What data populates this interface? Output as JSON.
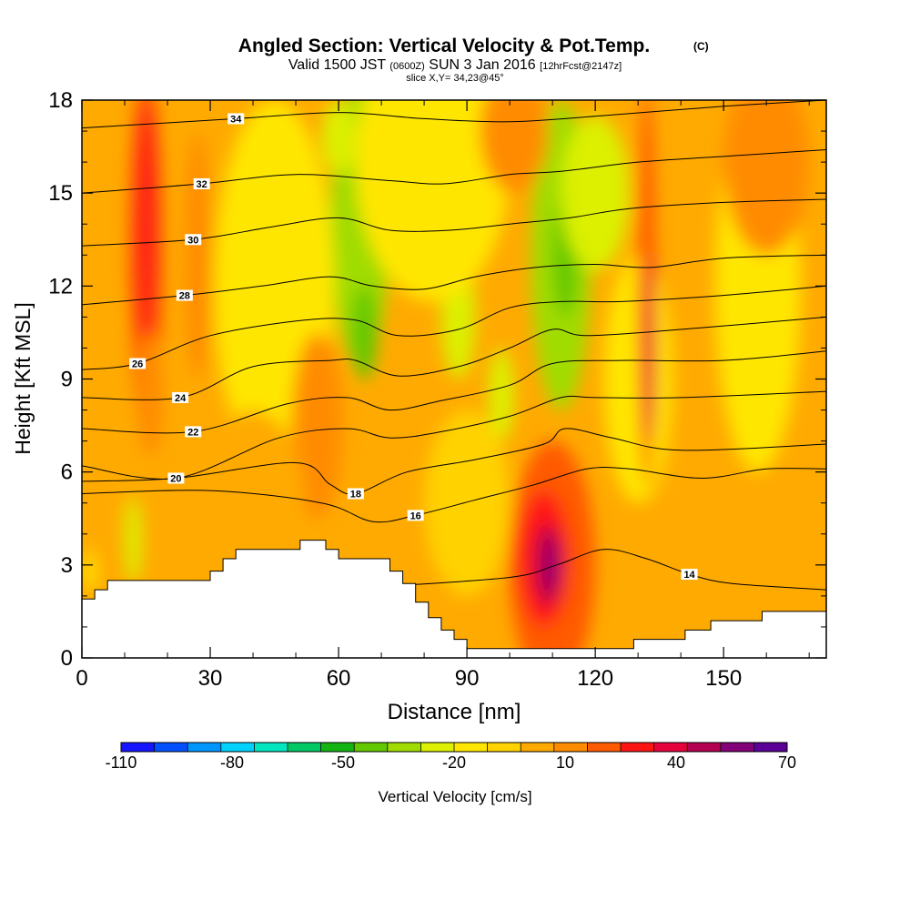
{
  "chart_data": {
    "type": "heatmap",
    "title": "Angled Section: Vertical Velocity & Pot.Temp.",
    "title_mark": "(C)",
    "subtitle": {
      "valid_prefix": "Valid 1500 JST",
      "utc": "(0600Z)",
      "date": "SUN 3 Jan 2016",
      "forecast": "[12hrFcst@2147z]"
    },
    "slice_label": "slice X,Y= 34,23@45°",
    "xlabel": "Distance [nm]",
    "ylabel": "Height [Kft MSL]",
    "xlim": [
      0,
      174
    ],
    "ylim": [
      0,
      18
    ],
    "x_ticks": [
      "0",
      "30",
      "60",
      "90",
      "120",
      "150"
    ],
    "y_ticks": [
      "0",
      "3",
      "6",
      "9",
      "12",
      "15",
      "18"
    ],
    "grid": false,
    "colorbar": {
      "label": "Vertical Velocity [cm/s]",
      "tick_labels": [
        "-110",
        "-80",
        "-50",
        "-20",
        "10",
        "40",
        "70"
      ],
      "levels": [
        -110,
        -100,
        -90,
        -80,
        -70,
        -60,
        -50,
        -40,
        -30,
        -20,
        -10,
        0,
        10,
        20,
        30,
        40,
        50,
        60,
        70
      ],
      "colors": [
        "#1414ff",
        "#0050ff",
        "#0096ff",
        "#00d2ff",
        "#00e6be",
        "#00c864",
        "#14b414",
        "#64c800",
        "#a0dc00",
        "#dcf000",
        "#ffe600",
        "#ffd200",
        "#ffaa00",
        "#ff8c00",
        "#ff5a00",
        "#ff1414",
        "#e6003c",
        "#b40050",
        "#820078",
        "#5a0096"
      ]
    },
    "velocity_features": [
      {
        "x": 65,
        "y": 14,
        "w": 7,
        "h": 4.5,
        "value": -35
      },
      {
        "x": 66,
        "y": 10.5,
        "w": 3,
        "h": 1.5,
        "value": -45
      },
      {
        "x": 60,
        "y": 16.8,
        "w": 4,
        "h": 1.2,
        "value": -30
      },
      {
        "x": 112,
        "y": 13,
        "w": 7,
        "h": 5,
        "value": -35
      },
      {
        "x": 113,
        "y": 13,
        "w": 3,
        "h": 2,
        "value": -45
      },
      {
        "x": 98,
        "y": 8.5,
        "w": 3,
        "h": 1.5,
        "value": -25
      },
      {
        "x": 88,
        "y": 11,
        "w": 4,
        "h": 2,
        "value": -22
      },
      {
        "x": 120,
        "y": 15,
        "w": 8,
        "h": 2.5,
        "value": -25
      },
      {
        "x": 12,
        "y": 3.8,
        "w": 2,
        "h": 1.4,
        "value": -22
      },
      {
        "x": 2,
        "y": 2.8,
        "w": 1.5,
        "h": 0.7,
        "value": -15
      },
      {
        "x": 82,
        "y": 16,
        "w": 18,
        "h": 4.5,
        "value": -12
      },
      {
        "x": 130,
        "y": 9,
        "w": 8,
        "h": 4,
        "value": -13
      },
      {
        "x": 45,
        "y": 12,
        "w": 14,
        "h": 6,
        "value": -12
      },
      {
        "x": 158,
        "y": 12,
        "w": 10,
        "h": 6,
        "value": -13
      },
      {
        "x": 90,
        "y": 5,
        "w": 10,
        "h": 3,
        "value": -6
      },
      {
        "x": 15,
        "y": 13,
        "w": 4,
        "h": 6,
        "value": 25
      },
      {
        "x": 15,
        "y": 14,
        "w": 2.5,
        "h": 4,
        "value": 35
      },
      {
        "x": 16,
        "y": 8.5,
        "w": 3,
        "h": 2,
        "value": 12
      },
      {
        "x": 27,
        "y": 13,
        "w": 3,
        "h": 4,
        "value": 15
      },
      {
        "x": 132,
        "y": 12,
        "w": 2,
        "h": 6.5,
        "value": 28
      },
      {
        "x": 133,
        "y": 10,
        "w": 1.2,
        "h": 3,
        "value": 40
      },
      {
        "x": 110,
        "y": 3,
        "w": 10,
        "h": 4,
        "value": 25
      },
      {
        "x": 108,
        "y": 3.2,
        "w": 6,
        "h": 2.2,
        "value": 38
      },
      {
        "x": 109,
        "y": 3,
        "w": 3,
        "h": 1.3,
        "value": 50
      },
      {
        "x": 110,
        "y": 3,
        "w": 1.2,
        "h": 0.8,
        "value": 65
      },
      {
        "x": 55,
        "y": 7.5,
        "w": 6,
        "h": 3,
        "value": 15
      },
      {
        "x": 101,
        "y": 17,
        "w": 8,
        "h": 2,
        "value": 15
      },
      {
        "x": 145,
        "y": 4,
        "w": 12,
        "h": 3,
        "value": 3
      },
      {
        "x": 40,
        "y": 5,
        "w": 12,
        "h": 3,
        "value": 5
      },
      {
        "x": 5,
        "y": 8,
        "w": 6,
        "h": 4,
        "value": 8
      },
      {
        "x": 160,
        "y": 16,
        "w": 10,
        "h": 3,
        "value": 12
      }
    ],
    "terrain": [
      [
        0,
        1.9
      ],
      [
        3,
        1.9
      ],
      [
        3,
        2.2
      ],
      [
        6,
        2.2
      ],
      [
        6,
        2.5
      ],
      [
        30,
        2.5
      ],
      [
        30,
        2.8
      ],
      [
        33,
        2.8
      ],
      [
        33,
        3.2
      ],
      [
        36,
        3.2
      ],
      [
        36,
        3.5
      ],
      [
        51,
        3.5
      ],
      [
        51,
        3.8
      ],
      [
        57,
        3.8
      ],
      [
        57,
        3.5
      ],
      [
        60,
        3.5
      ],
      [
        60,
        3.2
      ],
      [
        72,
        3.2
      ],
      [
        72,
        2.8
      ],
      [
        75,
        2.8
      ],
      [
        75,
        2.4
      ],
      [
        78,
        2.4
      ],
      [
        78,
        1.8
      ],
      [
        81,
        1.8
      ],
      [
        81,
        1.3
      ],
      [
        84,
        1.3
      ],
      [
        84,
        0.9
      ],
      [
        87,
        0.9
      ],
      [
        87,
        0.6
      ],
      [
        90,
        0.6
      ],
      [
        90,
        0.3
      ],
      [
        129,
        0.3
      ],
      [
        129,
        0.6
      ],
      [
        141,
        0.6
      ],
      [
        141,
        0.9
      ],
      [
        147,
        0.9
      ],
      [
        147,
        1.2
      ],
      [
        159,
        1.2
      ],
      [
        159,
        1.5
      ],
      [
        174,
        1.5
      ]
    ],
    "theta_contours": [
      {
        "value": 14,
        "label": "14",
        "label_at": [
          142,
          2.7
        ],
        "points": [
          [
            70,
            2.3
          ],
          [
            100,
            2.6
          ],
          [
            111,
            3.0
          ],
          [
            122,
            3.5
          ],
          [
            132,
            3.2
          ],
          [
            142,
            2.7
          ],
          [
            152,
            2.4
          ],
          [
            174,
            2.2
          ]
        ]
      },
      {
        "value": 16,
        "label": "16",
        "label_at": [
          78,
          4.6
        ],
        "points": [
          [
            0,
            5.3
          ],
          [
            30,
            5.4
          ],
          [
            56,
            5.0
          ],
          [
            68,
            4.4
          ],
          [
            78,
            4.6
          ],
          [
            92,
            5.1
          ],
          [
            106,
            5.6
          ],
          [
            118,
            6.1
          ],
          [
            128,
            6.1
          ],
          [
            145,
            5.8
          ],
          [
            160,
            6.1
          ],
          [
            174,
            6.1
          ]
        ]
      },
      {
        "value": 18,
        "label": "18",
        "label_at": [
          64,
          5.3
        ],
        "points": [
          [
            0,
            5.7
          ],
          [
            22,
            5.8
          ],
          [
            50,
            6.3
          ],
          [
            58,
            5.6
          ],
          [
            64,
            5.3
          ],
          [
            76,
            6.0
          ],
          [
            92,
            6.4
          ],
          [
            108,
            6.9
          ],
          [
            113,
            7.4
          ],
          [
            124,
            7.1
          ],
          [
            140,
            6.7
          ],
          [
            174,
            6.9
          ]
        ]
      },
      {
        "value": 20,
        "label": "20",
        "label_at": [
          22,
          5.8
        ],
        "points": [
          [
            0,
            6.2
          ],
          [
            22,
            5.8
          ],
          [
            46,
            7.1
          ],
          [
            62,
            7.4
          ],
          [
            72,
            7.1
          ],
          [
            84,
            7.3
          ],
          [
            100,
            7.8
          ],
          [
            112,
            8.4
          ],
          [
            120,
            8.4
          ],
          [
            140,
            8.4
          ],
          [
            174,
            8.6
          ]
        ]
      },
      {
        "value": 22,
        "label": "22",
        "label_at": [
          26,
          7.3
        ],
        "points": [
          [
            0,
            7.4
          ],
          [
            26,
            7.3
          ],
          [
            48,
            8.2
          ],
          [
            62,
            8.4
          ],
          [
            72,
            8.0
          ],
          [
            84,
            8.3
          ],
          [
            100,
            8.8
          ],
          [
            110,
            9.5
          ],
          [
            126,
            9.6
          ],
          [
            150,
            9.6
          ],
          [
            174,
            9.9
          ]
        ]
      },
      {
        "value": 24,
        "label": "24",
        "label_at": [
          23,
          8.4
        ],
        "points": [
          [
            0,
            8.4
          ],
          [
            23,
            8.4
          ],
          [
            40,
            9.4
          ],
          [
            58,
            9.6
          ],
          [
            64,
            9.6
          ],
          [
            74,
            9.1
          ],
          [
            88,
            9.4
          ],
          [
            100,
            10.0
          ],
          [
            110,
            10.6
          ],
          [
            118,
            10.4
          ],
          [
            140,
            10.6
          ],
          [
            174,
            11.0
          ]
        ]
      },
      {
        "value": 26,
        "label": "26",
        "label_at": [
          13,
          9.5
        ],
        "points": [
          [
            0,
            9.3
          ],
          [
            13,
            9.5
          ],
          [
            30,
            10.4
          ],
          [
            52,
            10.9
          ],
          [
            64,
            10.9
          ],
          [
            74,
            10.4
          ],
          [
            88,
            10.6
          ],
          [
            100,
            11.3
          ],
          [
            112,
            11.5
          ],
          [
            126,
            11.5
          ],
          [
            150,
            11.7
          ],
          [
            174,
            12.0
          ]
        ]
      },
      {
        "value": 28,
        "label": "28",
        "label_at": [
          24,
          11.7
        ],
        "points": [
          [
            0,
            11.4
          ],
          [
            24,
            11.7
          ],
          [
            42,
            12.0
          ],
          [
            58,
            12.3
          ],
          [
            68,
            12.0
          ],
          [
            80,
            11.9
          ],
          [
            92,
            12.3
          ],
          [
            106,
            12.6
          ],
          [
            120,
            12.7
          ],
          [
            133,
            12.6
          ],
          [
            150,
            12.9
          ],
          [
            174,
            13.0
          ]
        ]
      },
      {
        "value": 30,
        "label": "30",
        "label_at": [
          26,
          13.5
        ],
        "points": [
          [
            0,
            13.3
          ],
          [
            26,
            13.5
          ],
          [
            44,
            13.9
          ],
          [
            60,
            14.2
          ],
          [
            72,
            13.8
          ],
          [
            86,
            13.8
          ],
          [
            100,
            14.0
          ],
          [
            114,
            14.2
          ],
          [
            128,
            14.5
          ],
          [
            150,
            14.7
          ],
          [
            174,
            14.8
          ]
        ]
      },
      {
        "value": 32,
        "label": "32",
        "label_at": [
          28,
          15.3
        ],
        "points": [
          [
            0,
            15.0
          ],
          [
            28,
            15.3
          ],
          [
            50,
            15.6
          ],
          [
            72,
            15.4
          ],
          [
            85,
            15.3
          ],
          [
            100,
            15.6
          ],
          [
            112,
            15.7
          ],
          [
            130,
            16.0
          ],
          [
            152,
            16.2
          ],
          [
            174,
            16.4
          ]
        ]
      },
      {
        "value": 34,
        "label": "34",
        "label_at": [
          36,
          17.4
        ],
        "points": [
          [
            0,
            17.1
          ],
          [
            36,
            17.4
          ],
          [
            60,
            17.6
          ],
          [
            80,
            17.4
          ],
          [
            100,
            17.3
          ],
          [
            122,
            17.5
          ],
          [
            150,
            17.8
          ],
          [
            174,
            18.0
          ]
        ]
      }
    ]
  }
}
